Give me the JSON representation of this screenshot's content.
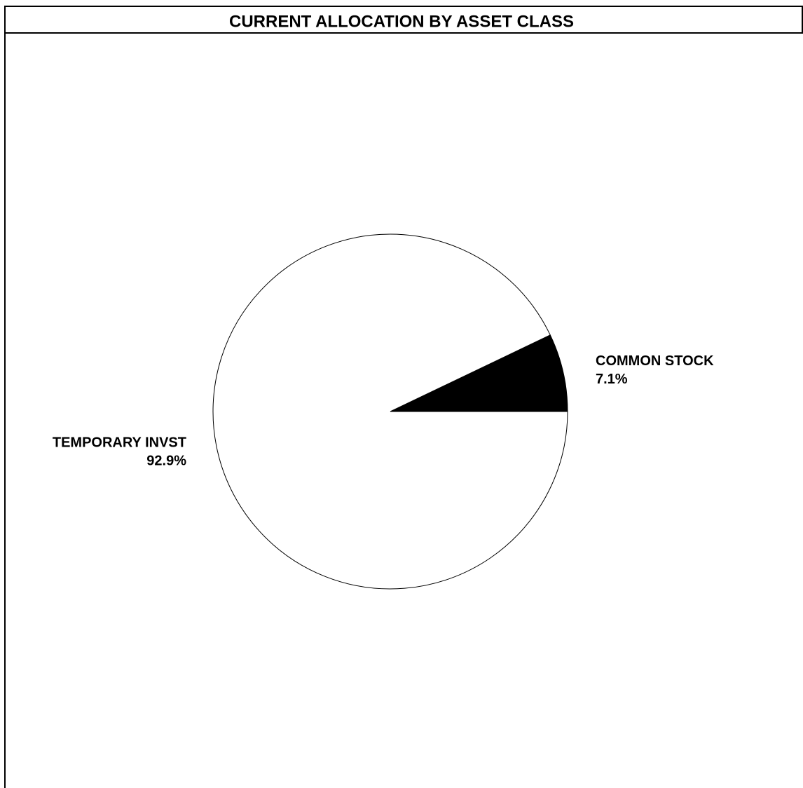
{
  "chart_data": {
    "type": "pie",
    "title": "CURRENT ALLOCATION BY ASSET CLASS",
    "categories": [
      "COMMON STOCK",
      "TEMPORARY INVST"
    ],
    "values": [
      7.1,
      92.9
    ],
    "value_labels": [
      "7.1%",
      "92.9%"
    ],
    "colors": [
      "#000000",
      "#ffffff"
    ]
  }
}
